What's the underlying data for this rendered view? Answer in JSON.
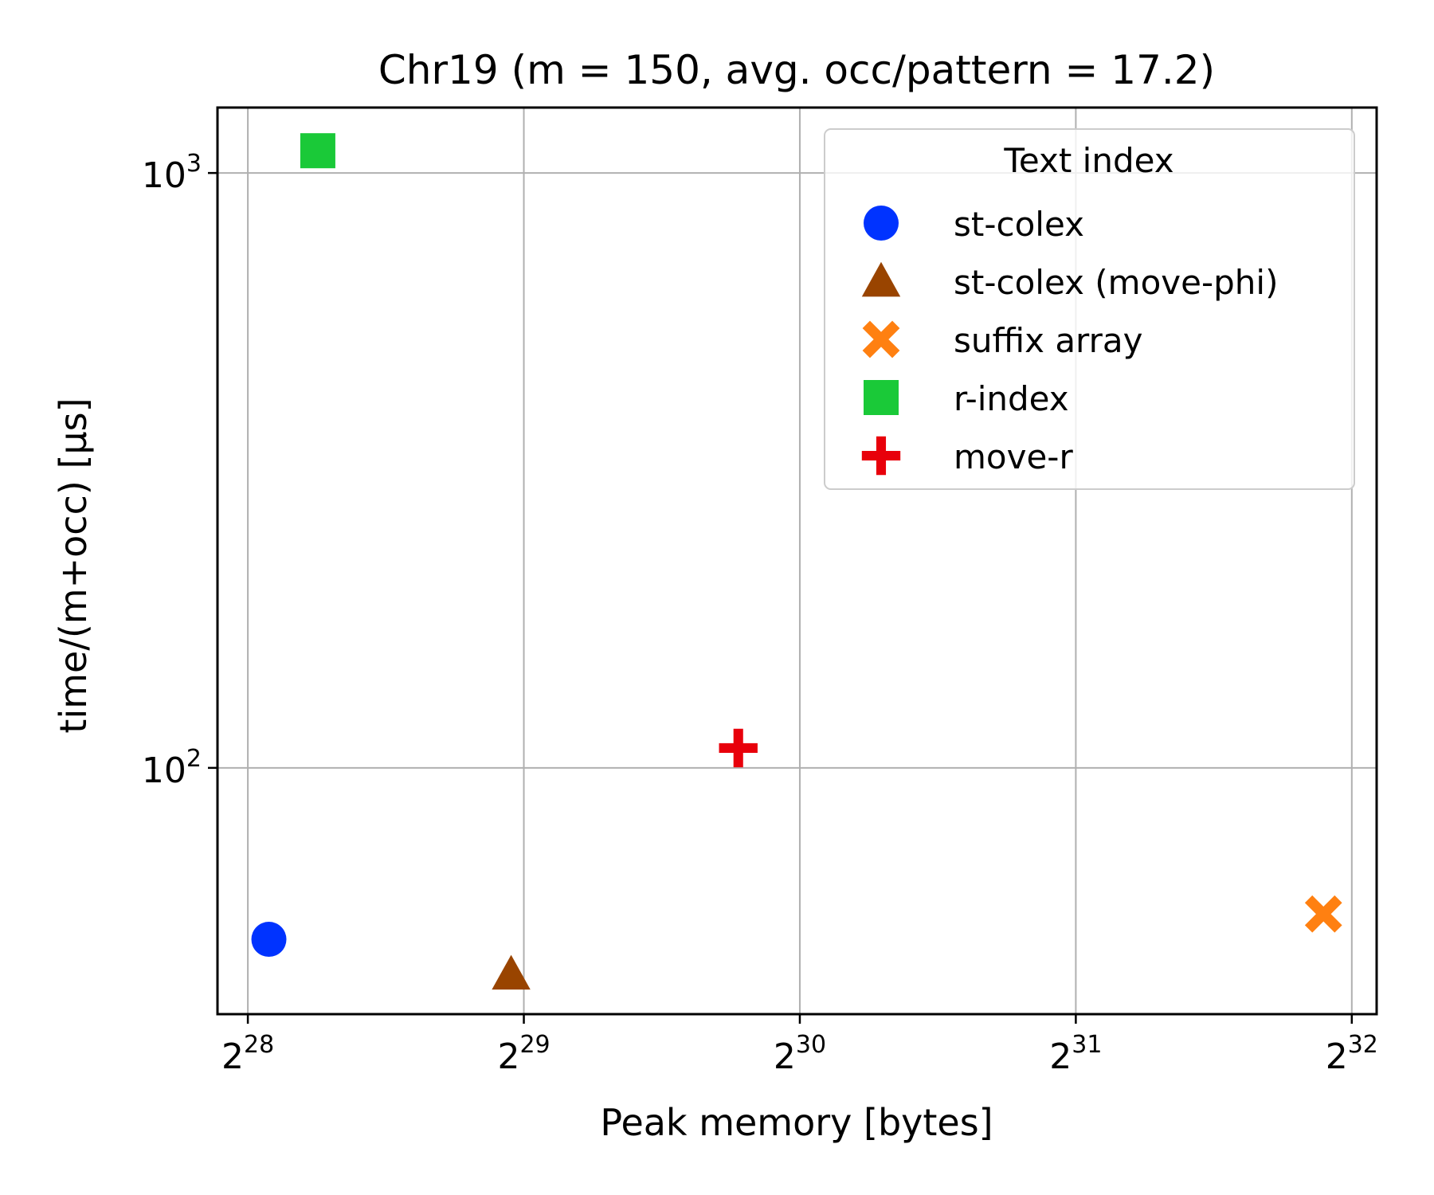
{
  "chart_data": {
    "type": "scatter",
    "title": "Chr19 (m = 150,  avg. occ/pattern = 17.2)",
    "xlabel": "Peak memory [bytes]",
    "ylabel": "time/(m+occ) [µs]",
    "x_scale": "log2",
    "y_scale": "log10",
    "xlim_exponent_base2": [
      27.89,
      32.09
    ],
    "ylim_exponent_base10": [
      1.586,
      3.11
    ],
    "x_ticks": [
      {
        "base": "2",
        "exp": "28",
        "value_log2": 28
      },
      {
        "base": "2",
        "exp": "29",
        "value_log2": 29
      },
      {
        "base": "2",
        "exp": "30",
        "value_log2": 30
      },
      {
        "base": "2",
        "exp": "31",
        "value_log2": 31
      },
      {
        "base": "2",
        "exp": "32",
        "value_log2": 32
      }
    ],
    "y_ticks": [
      {
        "base": "10",
        "exp": "2",
        "value_log10": 2
      },
      {
        "base": "10",
        "exp": "3",
        "value_log10": 3
      }
    ],
    "grid": true,
    "legend": {
      "title": "Text index",
      "placement": "upper right"
    },
    "series": [
      {
        "name": "st-colex",
        "marker": "circle",
        "color": "#0033ff",
        "x": 283000000.0,
        "y": 51.5
      },
      {
        "name": "st-colex (move-phi)",
        "marker": "triangle",
        "color": "#994400",
        "x": 520000000.0,
        "y": 45.0
      },
      {
        "name": "suffix array",
        "marker": "x",
        "color": "#ff8011",
        "x": 4000000000.0,
        "y": 56.8
      },
      {
        "name": "r-index",
        "marker": "square",
        "color": "#1ac938",
        "x": 320000000.0,
        "y": 1090
      },
      {
        "name": "move-r",
        "marker": "plus",
        "color": "#e8000b",
        "x": 920000000.0,
        "y": 108
      }
    ]
  }
}
